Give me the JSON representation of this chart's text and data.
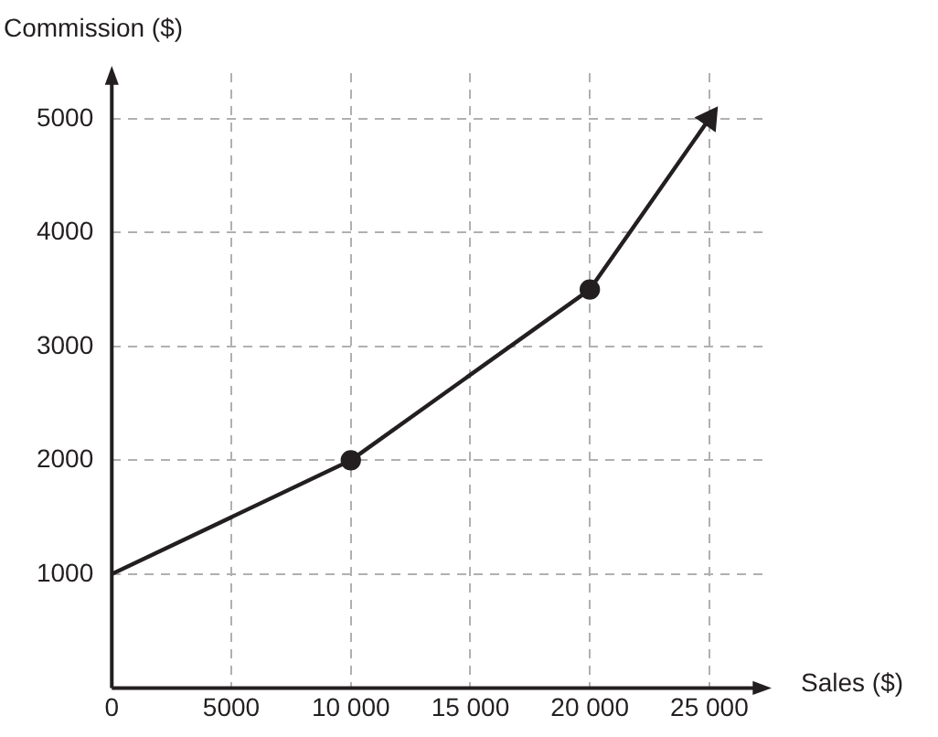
{
  "chart_data": {
    "type": "line",
    "xlabel": "Sales ($)",
    "ylabel": "Commission ($)",
    "series": [
      {
        "type": "line",
        "color": "#231f20",
        "marker": "none",
        "x": [
          0,
          10000,
          20000,
          25000
        ],
        "values": [
          1000,
          2000,
          3500,
          5000
        ]
      },
      {
        "type": "scatter",
        "color": "#231f20",
        "marker": "circle",
        "x": [
          10000,
          20000
        ],
        "values": [
          2000,
          3500
        ]
      }
    ],
    "xlim": [
      0,
      27300
    ],
    "ylim": [
      0,
      5400
    ],
    "xticks": [
      0,
      5000,
      {
        "value": 10000,
        "label": "10 000"
      },
      {
        "value": 15000,
        "label": "15 000"
      },
      {
        "value": 20000,
        "label": "20 000"
      },
      {
        "value": 25000,
        "label": "25 000"
      }
    ],
    "yticks": [
      1000,
      2000,
      3000,
      4000,
      5000
    ],
    "grid": true,
    "line_style": "solid",
    "legend": false
  }
}
